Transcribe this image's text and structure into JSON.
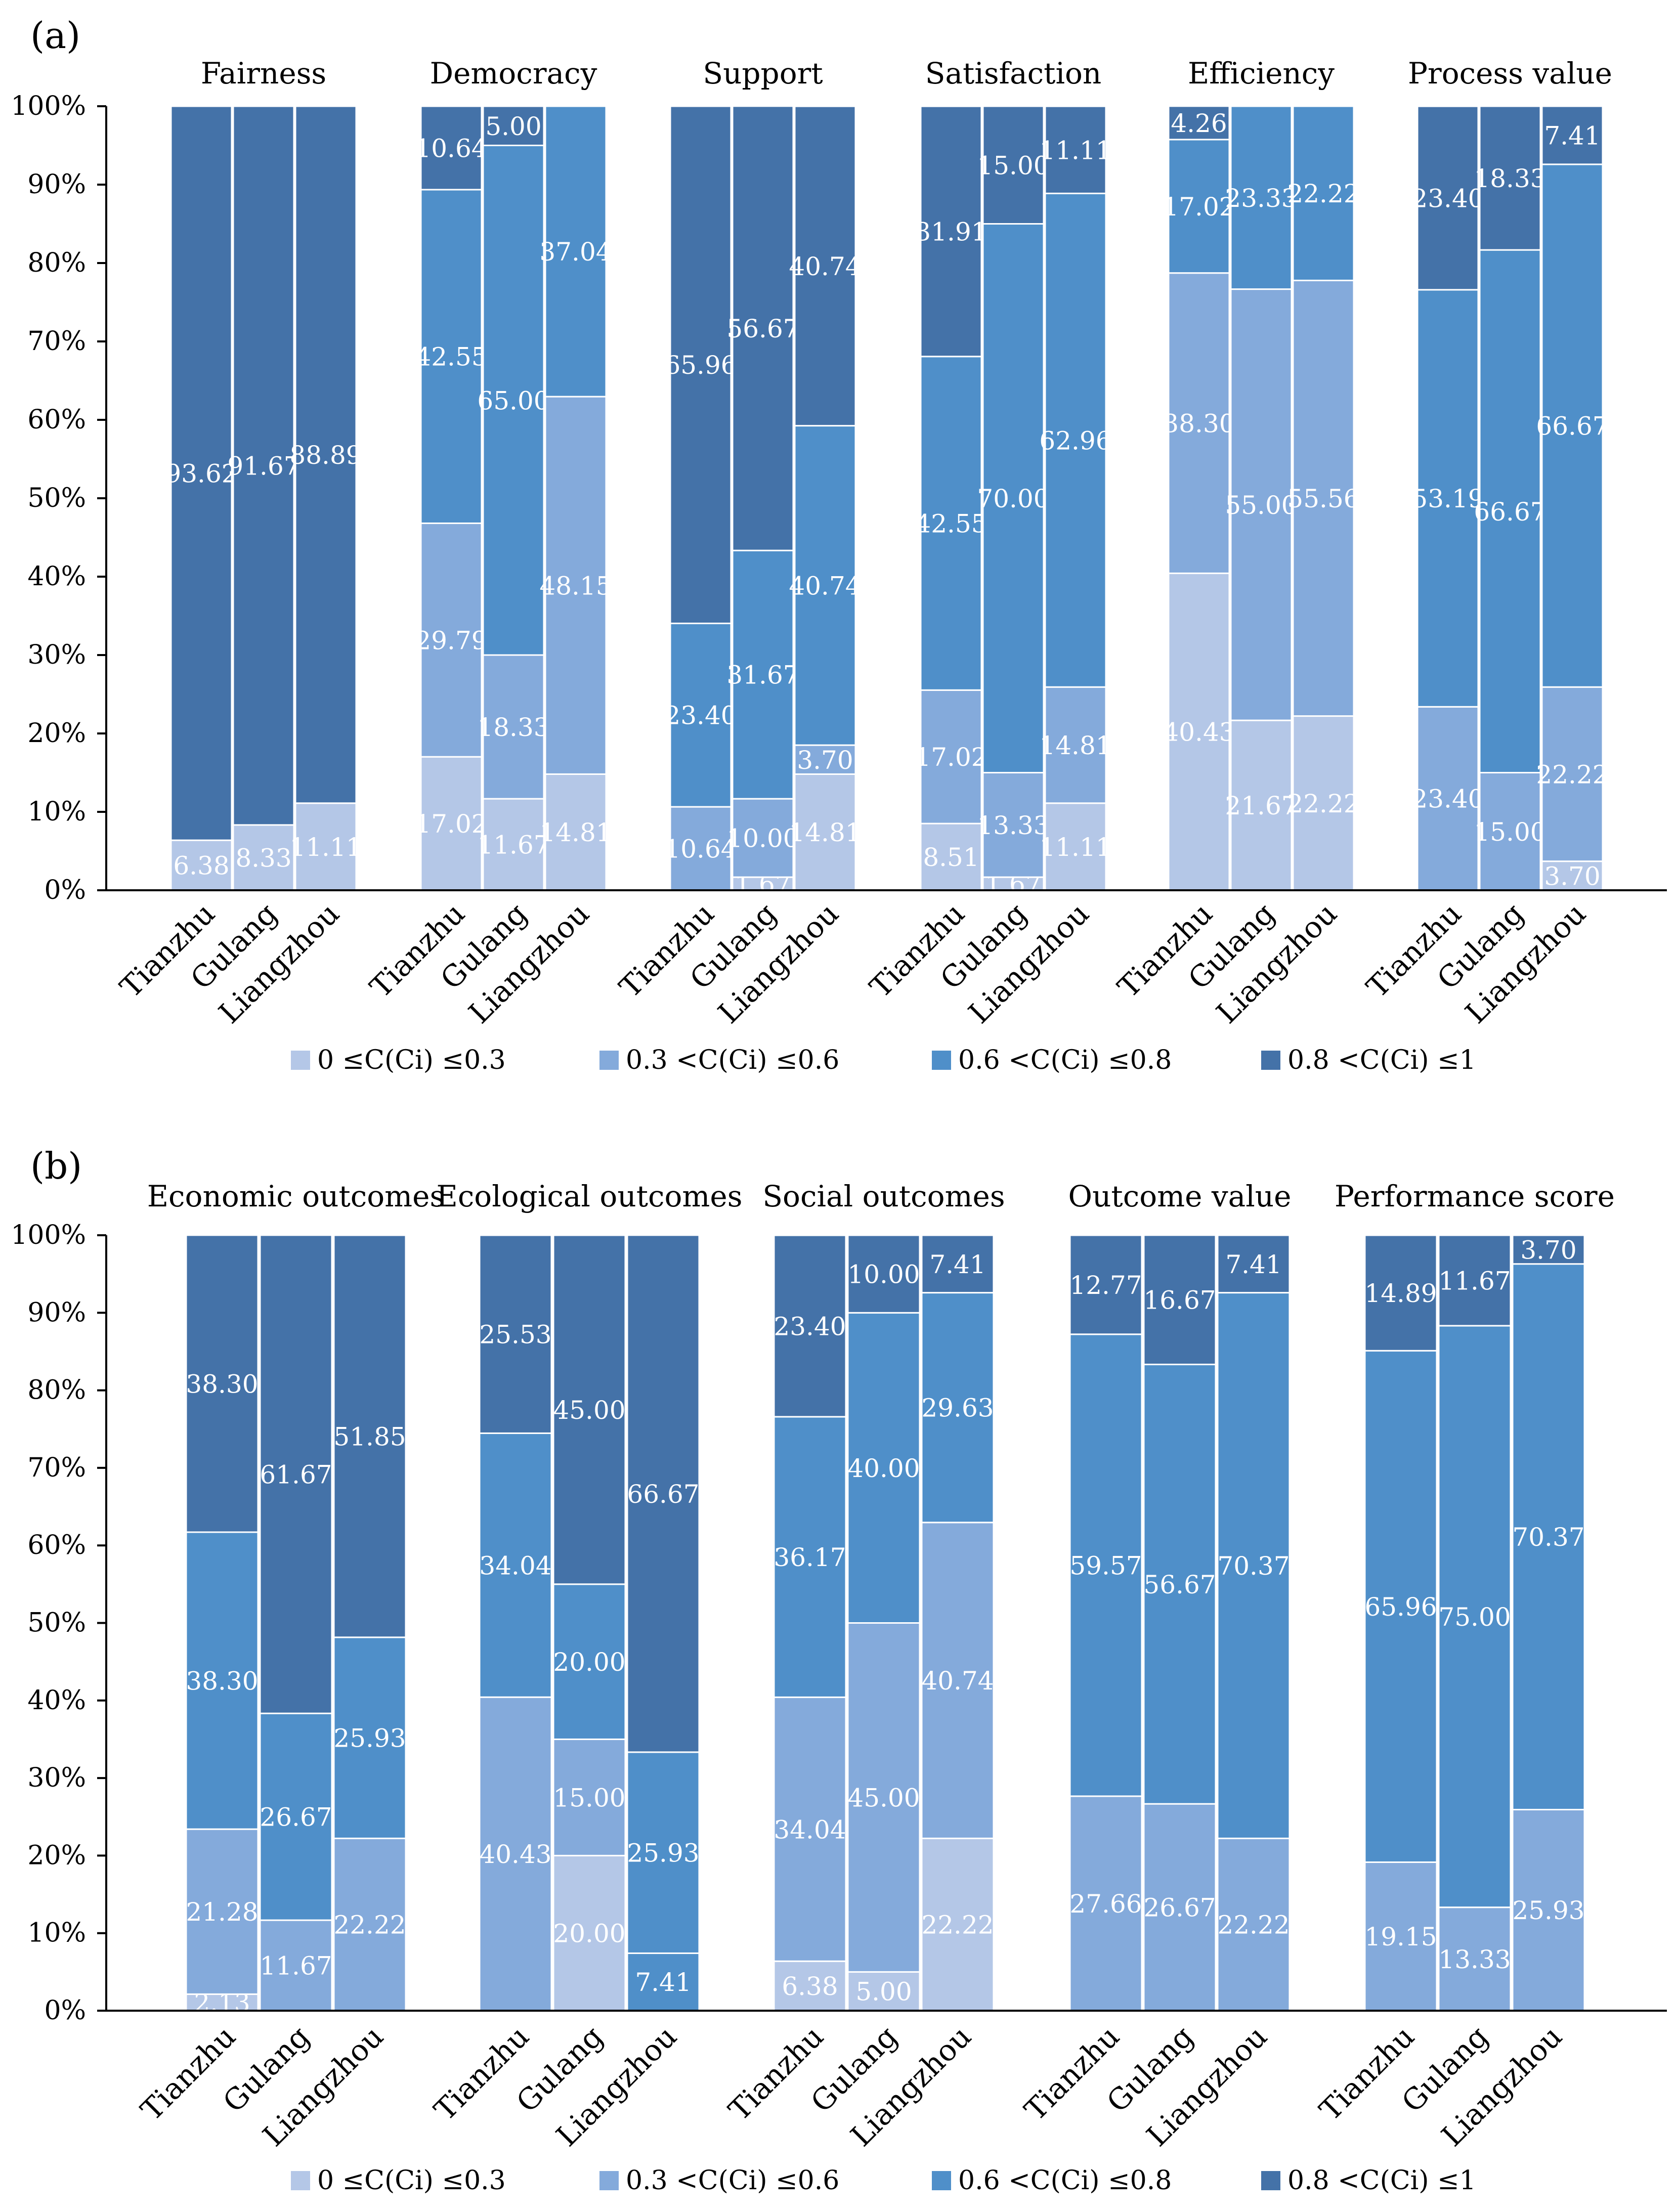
{
  "colors": {
    "low": "#b4c7e7",
    "midlow": "#84aadb",
    "midhigh": "#4f8fc9",
    "high": "#4472a8",
    "axis": "#000000",
    "label": "#ffffff",
    "text": "#000000"
  },
  "chart_data": [
    {
      "type": "bar",
      "stacked": true,
      "panel_label": "(a)",
      "y_ticks": [
        "0%",
        "10%",
        "20%",
        "30%",
        "40%",
        "50%",
        "60%",
        "70%",
        "80%",
        "90%",
        "100%"
      ],
      "ylim": [
        0,
        100
      ],
      "categories": [
        "Tianzhu",
        "Gulang",
        "Liangzhou"
      ],
      "legend": [
        "0 ≤C(Ci) ≤0.3",
        "0.3 <C(Ci) ≤0.6",
        "0.6 <C(Ci) ≤0.8",
        "0.8 <C(Ci) ≤1"
      ],
      "legend_position": "bottom",
      "groups": [
        {
          "title": "Fairness",
          "bars": [
            {
              "segments": [
                6.38,
                0,
                0,
                93.62
              ],
              "labels": [
                "6.38",
                "",
                "",
                "93.62"
              ]
            },
            {
              "segments": [
                8.33,
                0,
                0,
                91.67
              ],
              "labels": [
                "8.33",
                "",
                "",
                "91.67"
              ]
            },
            {
              "segments": [
                11.11,
                0,
                0,
                88.89
              ],
              "labels": [
                "11.11",
                "",
                "",
                "88.89"
              ]
            }
          ]
        },
        {
          "title": "Democracy",
          "bars": [
            {
              "segments": [
                17.02,
                29.79,
                42.55,
                10.64
              ],
              "labels": [
                "17.02",
                "29.79",
                "42.55",
                "10.64"
              ]
            },
            {
              "segments": [
                11.67,
                18.33,
                65.0,
                5.0
              ],
              "labels": [
                "11.67",
                "18.33",
                "65.00",
                "5.00"
              ]
            },
            {
              "segments": [
                14.81,
                48.15,
                37.04,
                0
              ],
              "labels": [
                "14.81",
                "48.15",
                "37.04",
                ""
              ]
            }
          ]
        },
        {
          "title": "Support",
          "bars": [
            {
              "segments": [
                0,
                10.64,
                23.4,
                65.96
              ],
              "labels": [
                "",
                "10.64",
                "23.40",
                "65.96"
              ]
            },
            {
              "segments": [
                1.67,
                10.0,
                31.67,
                56.67
              ],
              "labels": [
                "1.67",
                "10.00",
                "31.67",
                "56.67"
              ]
            },
            {
              "segments": [
                14.81,
                3.7,
                40.74,
                40.74
              ],
              "labels": [
                "14.81",
                "3.70",
                "40.74",
                "40.74"
              ]
            }
          ]
        },
        {
          "title": "Satisfaction",
          "bars": [
            {
              "segments": [
                8.51,
                17.02,
                42.55,
                31.91
              ],
              "labels": [
                "8.51",
                "17.02",
                "42.55",
                "31.91"
              ]
            },
            {
              "segments": [
                1.67,
                13.33,
                70.0,
                15.0
              ],
              "labels": [
                "1.67",
                "13.33",
                "70.00",
                "15.00"
              ]
            },
            {
              "segments": [
                11.11,
                14.81,
                62.96,
                11.11
              ],
              "labels": [
                "11.11",
                "14.81",
                "62.96",
                "11.11"
              ]
            }
          ]
        },
        {
          "title": "Efficiency",
          "bars": [
            {
              "segments": [
                40.43,
                38.3,
                17.02,
                4.26
              ],
              "labels": [
                "40.43",
                "38.30",
                "17.02",
                "4.26"
              ]
            },
            {
              "segments": [
                21.67,
                55.0,
                23.33,
                0
              ],
              "labels": [
                "21.67",
                "55.00",
                "23.33",
                ""
              ]
            },
            {
              "segments": [
                22.22,
                55.56,
                22.22,
                0
              ],
              "labels": [
                "22.22",
                "55.56",
                "22.22",
                ""
              ]
            }
          ]
        },
        {
          "title": "Process value",
          "bars": [
            {
              "segments": [
                0,
                23.4,
                53.19,
                23.4
              ],
              "labels": [
                "",
                "23.40",
                "53.19",
                "23.40"
              ]
            },
            {
              "segments": [
                0,
                15.0,
                66.67,
                18.33
              ],
              "labels": [
                "",
                "15.00",
                "66.67",
                "18.33"
              ]
            },
            {
              "segments": [
                3.7,
                22.22,
                66.67,
                7.41
              ],
              "labels": [
                "3.70",
                "22.22",
                "66.67",
                "7.41"
              ]
            }
          ]
        }
      ]
    },
    {
      "type": "bar",
      "stacked": true,
      "panel_label": "(b)",
      "y_ticks": [
        "0%",
        "10%",
        "20%",
        "30%",
        "40%",
        "50%",
        "60%",
        "70%",
        "80%",
        "90%",
        "100%"
      ],
      "ylim": [
        0,
        100
      ],
      "categories": [
        "Tianzhu",
        "Gulang",
        "Liangzhou"
      ],
      "legend": [
        "0 ≤C(Ci) ≤0.3",
        "0.3 <C(Ci) ≤0.6",
        "0.6 <C(Ci) ≤0.8",
        "0.8 <C(Ci) ≤1"
      ],
      "legend_position": "bottom",
      "groups": [
        {
          "title": "Economic outcomes",
          "bars": [
            {
              "segments": [
                2.13,
                21.28,
                38.3,
                38.3
              ],
              "labels": [
                "2.13",
                "21.28",
                "38.30",
                "38.30"
              ]
            },
            {
              "segments": [
                0,
                11.67,
                26.67,
                61.67
              ],
              "labels": [
                "",
                "11.67",
                "26.67",
                "61.67"
              ]
            },
            {
              "segments": [
                0,
                22.22,
                25.93,
                51.85
              ],
              "labels": [
                "",
                "22.22",
                "25.93",
                "51.85"
              ]
            }
          ]
        },
        {
          "title": "Ecological outcomes",
          "bars": [
            {
              "segments": [
                0,
                40.43,
                34.04,
                25.53
              ],
              "labels": [
                "",
                "40.43",
                "34.04",
                "25.53"
              ]
            },
            {
              "segments": [
                20.0,
                15.0,
                20.0,
                45.0
              ],
              "labels": [
                "20.00",
                "15.00",
                "20.00",
                "45.00"
              ]
            },
            {
              "segments": [
                0,
                0,
                25.93,
                66.67
              ],
              "labels": [
                "",
                "",
                "25.93",
                "66.67"
              ],
              "unlabeled_bottom": 7.41,
              "bottom_label": "7.41"
            }
          ]
        },
        {
          "title": "Social outcomes",
          "bars": [
            {
              "segments": [
                6.38,
                34.04,
                36.17,
                23.4
              ],
              "labels": [
                "6.38",
                "34.04",
                "36.17",
                "23.40"
              ]
            },
            {
              "segments": [
                5.0,
                45.0,
                40.0,
                10.0
              ],
              "labels": [
                "5.00",
                "45.00",
                "40.00",
                "10.00"
              ]
            },
            {
              "segments": [
                22.22,
                40.74,
                29.63,
                7.41
              ],
              "labels": [
                "22.22",
                "40.74",
                "29.63",
                "7.41"
              ]
            }
          ]
        },
        {
          "title": "Outcome value",
          "bars": [
            {
              "segments": [
                0,
                27.66,
                59.57,
                12.77
              ],
              "labels": [
                "",
                "27.66",
                "59.57",
                "12.77"
              ]
            },
            {
              "segments": [
                0,
                26.67,
                56.67,
                16.67
              ],
              "labels": [
                "",
                "26.67",
                "56.67",
                "16.67"
              ]
            },
            {
              "segments": [
                0,
                22.22,
                70.37,
                7.41
              ],
              "labels": [
                "",
                "22.22",
                "70.37",
                "7.41"
              ]
            }
          ]
        },
        {
          "title": "Performance score",
          "bars": [
            {
              "segments": [
                0,
                19.15,
                65.96,
                14.89
              ],
              "labels": [
                "",
                "19.15",
                "65.96",
                "14.89"
              ]
            },
            {
              "segments": [
                0,
                13.33,
                75.0,
                11.67
              ],
              "labels": [
                "",
                "13.33",
                "75.00",
                "11.67"
              ]
            },
            {
              "segments": [
                0,
                25.93,
                70.37,
                3.7
              ],
              "labels": [
                "",
                "25.93",
                "70.37",
                "3.70"
              ]
            }
          ]
        }
      ]
    }
  ]
}
